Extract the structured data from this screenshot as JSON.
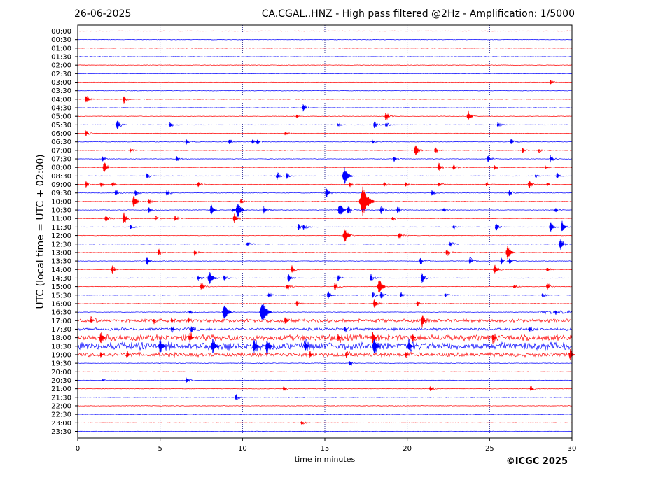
{
  "header": {
    "date": "26-06-2025",
    "station": "CA.CGAL..HNZ - High pass filtered @2Hz - Amplification: 1/5000"
  },
  "footer": {
    "copyright": "©ICGC 2025"
  },
  "colors": {
    "red_trace": "#ff0000",
    "blue_trace": "#0000ff",
    "grid": "#000080"
  },
  "chart_data": {
    "type": "heliplot",
    "title": "CA.CGAL..HNZ - High pass filtered @2Hz - Amplification: 1/5000",
    "date": "26-06-2025",
    "xlabel": "time in minutes",
    "ylabel": "UTC (local time = UTC + 02:00)",
    "xlim": [
      0,
      30
    ],
    "x_ticks": [
      0,
      5,
      10,
      15,
      20,
      25,
      30
    ],
    "row_labels": [
      "00:00",
      "00:30",
      "01:00",
      "01:30",
      "02:00",
      "02:30",
      "03:00",
      "03:30",
      "04:00",
      "04:30",
      "05:00",
      "05:30",
      "06:00",
      "06:30",
      "07:00",
      "07:30",
      "08:00",
      "08:30",
      "09:00",
      "09:30",
      "10:00",
      "10:30",
      "11:00",
      "11:30",
      "12:00",
      "12:30",
      "13:00",
      "13:30",
      "14:00",
      "14:30",
      "15:00",
      "15:30",
      "16:00",
      "16:30",
      "17:00",
      "17:30",
      "18:00",
      "18:30",
      "19:00",
      "19:30",
      "20:00",
      "20:30",
      "21:00",
      "21:30",
      "22:00",
      "22:30",
      "23:00",
      "23:30"
    ],
    "row_colors": [
      "red",
      "blue"
    ],
    "events": [
      {
        "row": "03:00",
        "minute": 28.7,
        "amp": 4
      },
      {
        "row": "04:00",
        "minute": 0.5,
        "amp": 8
      },
      {
        "row": "04:00",
        "minute": 2.8,
        "amp": 6
      },
      {
        "row": "04:30",
        "minute": 13.7,
        "amp": 7
      },
      {
        "row": "05:00",
        "minute": 18.7,
        "amp": 7
      },
      {
        "row": "05:00",
        "minute": 13.3,
        "amp": 3
      },
      {
        "row": "05:00",
        "minute": 23.7,
        "amp": 9
      },
      {
        "row": "05:30",
        "minute": 2.4,
        "amp": 8
      },
      {
        "row": "05:30",
        "minute": 5.6,
        "amp": 5
      },
      {
        "row": "05:30",
        "minute": 15.8,
        "amp": 3
      },
      {
        "row": "05:30",
        "minute": 18.0,
        "amp": 6
      },
      {
        "row": "05:30",
        "minute": 18.7,
        "amp": 4
      },
      {
        "row": "05:30",
        "minute": 25.5,
        "amp": 4
      },
      {
        "row": "06:00",
        "minute": 0.5,
        "amp": 5
      },
      {
        "row": "06:00",
        "minute": 12.6,
        "amp": 3
      },
      {
        "row": "06:30",
        "minute": 6.6,
        "amp": 5
      },
      {
        "row": "06:30",
        "minute": 9.2,
        "amp": 5
      },
      {
        "row": "06:30",
        "minute": 10.6,
        "amp": 4
      },
      {
        "row": "06:30",
        "minute": 10.9,
        "amp": 4
      },
      {
        "row": "06:30",
        "minute": 17.9,
        "amp": 3
      },
      {
        "row": "06:30",
        "minute": 26.3,
        "amp": 6
      },
      {
        "row": "07:00",
        "minute": 3.2,
        "amp": 3
      },
      {
        "row": "07:00",
        "minute": 20.5,
        "amp": 10
      },
      {
        "row": "07:00",
        "minute": 21.7,
        "amp": 6
      },
      {
        "row": "07:00",
        "minute": 27.0,
        "amp": 4
      },
      {
        "row": "07:00",
        "minute": 28.0,
        "amp": 3
      },
      {
        "row": "07:30",
        "minute": 1.5,
        "amp": 5
      },
      {
        "row": "07:30",
        "minute": 6.0,
        "amp": 4
      },
      {
        "row": "07:30",
        "minute": 19.2,
        "amp": 5
      },
      {
        "row": "07:30",
        "minute": 24.9,
        "amp": 6
      },
      {
        "row": "07:30",
        "minute": 28.7,
        "amp": 6
      },
      {
        "row": "08:00",
        "minute": 1.6,
        "amp": 9
      },
      {
        "row": "08:00",
        "minute": 21.9,
        "amp": 7
      },
      {
        "row": "08:00",
        "minute": 22.8,
        "amp": 5
      },
      {
        "row": "08:00",
        "minute": 25.3,
        "amp": 4
      },
      {
        "row": "08:00",
        "minute": 28.4,
        "amp": 3
      },
      {
        "row": "08:30",
        "minute": 4.2,
        "amp": 6
      },
      {
        "row": "08:30",
        "minute": 12.1,
        "amp": 6
      },
      {
        "row": "08:30",
        "minute": 12.7,
        "amp": 5
      },
      {
        "row": "08:30",
        "minute": 16.2,
        "amp": 14
      },
      {
        "row": "08:30",
        "minute": 29.1,
        "amp": 5
      },
      {
        "row": "08:30",
        "minute": 27.8,
        "amp": 3
      },
      {
        "row": "09:00",
        "minute": 0.5,
        "amp": 5
      },
      {
        "row": "09:00",
        "minute": 1.4,
        "amp": 4
      },
      {
        "row": "09:00",
        "minute": 2.1,
        "amp": 4
      },
      {
        "row": "09:00",
        "minute": 7.3,
        "amp": 5
      },
      {
        "row": "09:00",
        "minute": 16.5,
        "amp": 4
      },
      {
        "row": "09:00",
        "minute": 18.6,
        "amp": 4
      },
      {
        "row": "09:00",
        "minute": 19.9,
        "amp": 4
      },
      {
        "row": "09:00",
        "minute": 21.9,
        "amp": 5
      },
      {
        "row": "09:00",
        "minute": 24.8,
        "amp": 4
      },
      {
        "row": "09:00",
        "minute": 27.4,
        "amp": 7
      },
      {
        "row": "09:00",
        "minute": 28.5,
        "amp": 3
      },
      {
        "row": "09:30",
        "minute": 2.3,
        "amp": 6
      },
      {
        "row": "09:30",
        "minute": 3.5,
        "amp": 5
      },
      {
        "row": "09:30",
        "minute": 5.4,
        "amp": 5
      },
      {
        "row": "09:30",
        "minute": 15.1,
        "amp": 8
      },
      {
        "row": "09:30",
        "minute": 21.5,
        "amp": 5
      },
      {
        "row": "09:30",
        "minute": 26.2,
        "amp": 5
      },
      {
        "row": "10:00",
        "minute": 3.4,
        "amp": 10
      },
      {
        "row": "10:00",
        "minute": 4.3,
        "amp": 4
      },
      {
        "row": "10:00",
        "minute": 9.9,
        "amp": 4
      },
      {
        "row": "10:00",
        "minute": 17.3,
        "amp": 22
      },
      {
        "row": "10:30",
        "minute": 4.3,
        "amp": 5
      },
      {
        "row": "10:30",
        "minute": 8.1,
        "amp": 9
      },
      {
        "row": "10:30",
        "minute": 9.4,
        "amp": 4
      },
      {
        "row": "10:30",
        "minute": 9.7,
        "amp": 13
      },
      {
        "row": "10:30",
        "minute": 11.3,
        "amp": 6
      },
      {
        "row": "10:30",
        "minute": 15.9,
        "amp": 12
      },
      {
        "row": "10:30",
        "minute": 16.4,
        "amp": 7
      },
      {
        "row": "10:30",
        "minute": 18.4,
        "amp": 7
      },
      {
        "row": "10:30",
        "minute": 19.4,
        "amp": 6
      },
      {
        "row": "10:30",
        "minute": 22.2,
        "amp": 3
      },
      {
        "row": "10:30",
        "minute": 29.0,
        "amp": 4
      },
      {
        "row": "11:00",
        "minute": 1.7,
        "amp": 7
      },
      {
        "row": "11:00",
        "minute": 2.8,
        "amp": 9
      },
      {
        "row": "11:00",
        "minute": 4.7,
        "amp": 4
      },
      {
        "row": "11:00",
        "minute": 5.9,
        "amp": 5
      },
      {
        "row": "11:00",
        "minute": 9.5,
        "amp": 8
      },
      {
        "row": "11:00",
        "minute": 19.1,
        "amp": 4
      },
      {
        "row": "11:30",
        "minute": 3.2,
        "amp": 4
      },
      {
        "row": "11:30",
        "minute": 13.4,
        "amp": 6
      },
      {
        "row": "11:30",
        "minute": 13.7,
        "amp": 5
      },
      {
        "row": "11:30",
        "minute": 22.8,
        "amp": 3
      },
      {
        "row": "11:30",
        "minute": 25.4,
        "amp": 7
      },
      {
        "row": "11:30",
        "minute": 28.7,
        "amp": 9
      },
      {
        "row": "11:30",
        "minute": 29.4,
        "amp": 9
      },
      {
        "row": "12:00",
        "minute": 16.2,
        "amp": 12
      },
      {
        "row": "12:00",
        "minute": 19.5,
        "amp": 5
      },
      {
        "row": "12:30",
        "minute": 10.3,
        "amp": 4
      },
      {
        "row": "12:30",
        "minute": 22.6,
        "amp": 5
      },
      {
        "row": "12:30",
        "minute": 29.3,
        "amp": 9
      },
      {
        "row": "13:00",
        "minute": 4.9,
        "amp": 6
      },
      {
        "row": "13:00",
        "minute": 7.1,
        "amp": 5
      },
      {
        "row": "13:00",
        "minute": 22.4,
        "amp": 7
      },
      {
        "row": "13:00",
        "minute": 26.1,
        "amp": 12
      },
      {
        "row": "13:30",
        "minute": 4.2,
        "amp": 7
      },
      {
        "row": "13:30",
        "minute": 20.8,
        "amp": 6
      },
      {
        "row": "13:30",
        "minute": 23.8,
        "amp": 6
      },
      {
        "row": "13:30",
        "minute": 25.7,
        "amp": 6
      },
      {
        "row": "13:30",
        "minute": 26.2,
        "amp": 5
      },
      {
        "row": "14:00",
        "minute": 2.1,
        "amp": 7
      },
      {
        "row": "14:00",
        "minute": 13.0,
        "amp": 6
      },
      {
        "row": "14:00",
        "minute": 25.3,
        "amp": 9
      },
      {
        "row": "14:00",
        "minute": 28.5,
        "amp": 5
      },
      {
        "row": "14:30",
        "minute": 7.3,
        "amp": 5
      },
      {
        "row": "14:30",
        "minute": 8.0,
        "amp": 12
      },
      {
        "row": "14:30",
        "minute": 8.9,
        "amp": 5
      },
      {
        "row": "14:30",
        "minute": 12.8,
        "amp": 8
      },
      {
        "row": "14:30",
        "minute": 15.8,
        "amp": 5
      },
      {
        "row": "14:30",
        "minute": 17.8,
        "amp": 6
      },
      {
        "row": "14:30",
        "minute": 20.9,
        "amp": 8
      },
      {
        "row": "15:00",
        "minute": 7.5,
        "amp": 7
      },
      {
        "row": "15:00",
        "minute": 12.7,
        "amp": 5
      },
      {
        "row": "15:00",
        "minute": 15.6,
        "amp": 6
      },
      {
        "row": "15:00",
        "minute": 18.3,
        "amp": 12
      },
      {
        "row": "15:00",
        "minute": 26.5,
        "amp": 4
      },
      {
        "row": "15:00",
        "minute": 28.5,
        "amp": 6
      },
      {
        "row": "15:30",
        "minute": 11.6,
        "amp": 4
      },
      {
        "row": "15:30",
        "minute": 15.2,
        "amp": 7
      },
      {
        "row": "15:30",
        "minute": 17.9,
        "amp": 5
      },
      {
        "row": "15:30",
        "minute": 18.4,
        "amp": 6
      },
      {
        "row": "15:30",
        "minute": 19.6,
        "amp": 5
      },
      {
        "row": "15:30",
        "minute": 22.3,
        "amp": 4
      },
      {
        "row": "15:30",
        "minute": 28.2,
        "amp": 4
      },
      {
        "row": "16:00",
        "minute": 13.3,
        "amp": 5
      },
      {
        "row": "16:00",
        "minute": 18.0,
        "amp": 8
      },
      {
        "row": "16:00",
        "minute": 20.6,
        "amp": 5
      },
      {
        "row": "16:30",
        "minute": 6.8,
        "amp": 4
      },
      {
        "row": "16:30",
        "minute": 8.9,
        "amp": 14
      },
      {
        "row": "16:30",
        "minute": 11.2,
        "amp": 18
      },
      {
        "row": "16:30",
        "minute": 29.0,
        "amp": 3
      },
      {
        "row": "17:00",
        "minute": 0.8,
        "amp": 4
      },
      {
        "row": "17:00",
        "minute": 4.6,
        "amp": 4
      },
      {
        "row": "17:00",
        "minute": 5.7,
        "amp": 4
      },
      {
        "row": "17:00",
        "minute": 6.7,
        "amp": 4
      },
      {
        "row": "17:00",
        "minute": 12.6,
        "amp": 7
      },
      {
        "row": "17:00",
        "minute": 20.9,
        "amp": 9
      },
      {
        "row": "17:30",
        "minute": 5.7,
        "amp": 5
      },
      {
        "row": "17:30",
        "minute": 6.9,
        "amp": 5
      },
      {
        "row": "17:30",
        "minute": 16.2,
        "amp": 4
      },
      {
        "row": "17:30",
        "minute": 27.4,
        "amp": 4
      },
      {
        "row": "18:00",
        "minute": 1.4,
        "amp": 9
      },
      {
        "row": "18:00",
        "minute": 6.8,
        "amp": 8
      },
      {
        "row": "18:00",
        "minute": 15.8,
        "amp": 6
      },
      {
        "row": "18:00",
        "minute": 17.9,
        "amp": 9
      },
      {
        "row": "18:00",
        "minute": 20.3,
        "amp": 7
      },
      {
        "row": "18:00",
        "minute": 25.2,
        "amp": 7
      },
      {
        "row": "18:30",
        "minute": 5.0,
        "amp": 11
      },
      {
        "row": "18:30",
        "minute": 8.2,
        "amp": 12
      },
      {
        "row": "18:30",
        "minute": 10.7,
        "amp": 10
      },
      {
        "row": "18:30",
        "minute": 11.5,
        "amp": 11
      },
      {
        "row": "18:30",
        "minute": 13.8,
        "amp": 9
      },
      {
        "row": "18:30",
        "minute": 18.0,
        "amp": 12
      },
      {
        "row": "18:30",
        "minute": 20.1,
        "amp": 9
      },
      {
        "row": "19:00",
        "minute": 1.4,
        "amp": 5
      },
      {
        "row": "19:00",
        "minute": 3.0,
        "amp": 6
      },
      {
        "row": "19:00",
        "minute": 14.1,
        "amp": 5
      },
      {
        "row": "19:00",
        "minute": 16.3,
        "amp": 5
      },
      {
        "row": "19:00",
        "minute": 19.9,
        "amp": 6
      },
      {
        "row": "19:00",
        "minute": 29.9,
        "amp": 9
      },
      {
        "row": "19:30",
        "minute": 16.5,
        "amp": 5
      },
      {
        "row": "20:30",
        "minute": 1.5,
        "amp": 2
      },
      {
        "row": "20:30",
        "minute": 6.6,
        "amp": 5
      },
      {
        "row": "21:00",
        "minute": 12.5,
        "amp": 4
      },
      {
        "row": "21:00",
        "minute": 21.4,
        "amp": 5
      },
      {
        "row": "21:00",
        "minute": 27.5,
        "amp": 5
      },
      {
        "row": "21:30",
        "minute": 9.6,
        "amp": 6
      },
      {
        "row": "23:00",
        "minute": 13.6,
        "amp": 4
      }
    ],
    "noisy_rows": [
      {
        "row": "16:30",
        "from_minute": 28.0,
        "level": 2
      },
      {
        "row": "17:00",
        "from_minute": 0,
        "level": 2
      },
      {
        "row": "17:30",
        "from_minute": 0,
        "level": 1.5
      },
      {
        "row": "18:00",
        "from_minute": 0,
        "level": 4
      },
      {
        "row": "18:30",
        "from_minute": 0,
        "level": 5
      },
      {
        "row": "19:00",
        "from_minute": 0,
        "level": 2.5
      }
    ],
    "grid": true
  }
}
